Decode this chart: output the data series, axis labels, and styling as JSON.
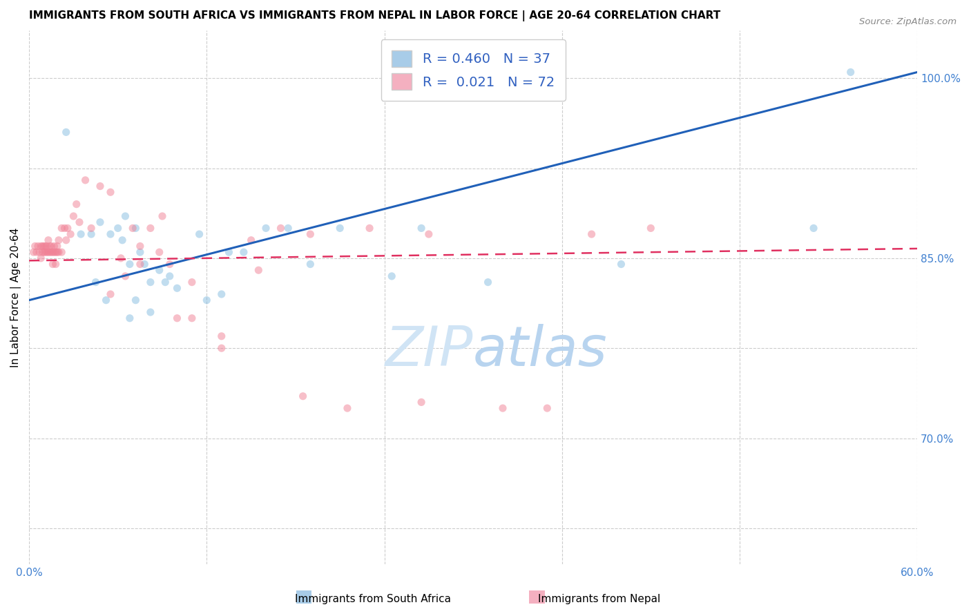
{
  "title": "IMMIGRANTS FROM SOUTH AFRICA VS IMMIGRANTS FROM NEPAL IN LABOR FORCE | AGE 20-64 CORRELATION CHART",
  "source": "Source: ZipAtlas.com",
  "ylabel": "In Labor Force | Age 20-64",
  "watermark_zip": "ZIP",
  "watermark_atlas": "atlas",
  "xlim": [
    0.0,
    0.6
  ],
  "ylim": [
    0.595,
    1.04
  ],
  "xticks": [
    0.0,
    0.12,
    0.24,
    0.36,
    0.48,
    0.6
  ],
  "ytick_positions": [
    0.625,
    0.7,
    0.775,
    0.85,
    0.925,
    1.0
  ],
  "ytick_labels_right": [
    "",
    "70.0%",
    "",
    "85.0%",
    "",
    "100.0%"
  ],
  "ytick_grid_positions": [
    0.7,
    0.775,
    0.85,
    0.925,
    1.0,
    0.625
  ],
  "blue_scatter_x": [
    0.025,
    0.035,
    0.042,
    0.048,
    0.055,
    0.06,
    0.063,
    0.065,
    0.068,
    0.072,
    0.075,
    0.078,
    0.082,
    0.088,
    0.092,
    0.1,
    0.12,
    0.13,
    0.145,
    0.16,
    0.175,
    0.19,
    0.21,
    0.245,
    0.265,
    0.31,
    0.4,
    0.53,
    0.555,
    0.045,
    0.052,
    0.068,
    0.072,
    0.082,
    0.095,
    0.115,
    0.135
  ],
  "blue_scatter_y": [
    0.955,
    0.87,
    0.87,
    0.88,
    0.87,
    0.875,
    0.865,
    0.885,
    0.845,
    0.875,
    0.855,
    0.845,
    0.83,
    0.84,
    0.83,
    0.825,
    0.815,
    0.82,
    0.855,
    0.875,
    0.875,
    0.845,
    0.875,
    0.835,
    0.875,
    0.83,
    0.845,
    0.875,
    1.005,
    0.83,
    0.815,
    0.8,
    0.815,
    0.805,
    0.835,
    0.87,
    0.855
  ],
  "pink_scatter_x": [
    0.003,
    0.004,
    0.005,
    0.006,
    0.007,
    0.008,
    0.008,
    0.009,
    0.009,
    0.01,
    0.01,
    0.011,
    0.011,
    0.012,
    0.012,
    0.013,
    0.013,
    0.014,
    0.014,
    0.015,
    0.015,
    0.016,
    0.016,
    0.017,
    0.017,
    0.018,
    0.018,
    0.019,
    0.019,
    0.02,
    0.02,
    0.022,
    0.022,
    0.024,
    0.025,
    0.026,
    0.028,
    0.03,
    0.032,
    0.034,
    0.038,
    0.042,
    0.048,
    0.055,
    0.062,
    0.07,
    0.075,
    0.082,
    0.09,
    0.1,
    0.11,
    0.13,
    0.15,
    0.17,
    0.19,
    0.23,
    0.27,
    0.32,
    0.38,
    0.42,
    0.055,
    0.065,
    0.075,
    0.088,
    0.095,
    0.11,
    0.13,
    0.155,
    0.185,
    0.215,
    0.265,
    0.35
  ],
  "pink_scatter_y": [
    0.855,
    0.86,
    0.855,
    0.86,
    0.855,
    0.85,
    0.86,
    0.855,
    0.86,
    0.855,
    0.86,
    0.855,
    0.86,
    0.855,
    0.86,
    0.855,
    0.865,
    0.855,
    0.86,
    0.855,
    0.86,
    0.845,
    0.855,
    0.855,
    0.86,
    0.845,
    0.855,
    0.855,
    0.86,
    0.855,
    0.865,
    0.855,
    0.875,
    0.875,
    0.865,
    0.875,
    0.87,
    0.885,
    0.895,
    0.88,
    0.915,
    0.875,
    0.91,
    0.905,
    0.85,
    0.875,
    0.86,
    0.875,
    0.885,
    0.8,
    0.83,
    0.775,
    0.865,
    0.875,
    0.87,
    0.875,
    0.87,
    0.725,
    0.87,
    0.875,
    0.82,
    0.835,
    0.845,
    0.855,
    0.845,
    0.8,
    0.785,
    0.84,
    0.735,
    0.725,
    0.73,
    0.725
  ],
  "blue_line_x": [
    0.0,
    0.6
  ],
  "blue_line_y": [
    0.815,
    1.005
  ],
  "pink_line_x": [
    0.0,
    0.6
  ],
  "pink_line_y": [
    0.848,
    0.858
  ],
  "dot_color_blue": "#85bce0",
  "dot_color_pink": "#f08095",
  "dot_edge_blue": "#85bce0",
  "dot_edge_pink": "#f08095",
  "trend_blue": "#2060b8",
  "trend_pink": "#e03060",
  "grid_color": "#cccccc",
  "background_color": "#ffffff",
  "title_fontsize": 11,
  "axis_label_fontsize": 11,
  "tick_fontsize": 11,
  "source_fontsize": 9.5,
  "scatter_alpha": 0.5,
  "scatter_size": 65,
  "legend_blue_label": "R = 0.460   N = 37",
  "legend_pink_label": "R =  0.021   N = 72",
  "legend_blue_patch": "#a8cce8",
  "legend_pink_patch": "#f4b0c0",
  "legend_text_color": "#3060c0",
  "tick_color_right": "#4080d0",
  "tick_color_x": "#4080d0"
}
